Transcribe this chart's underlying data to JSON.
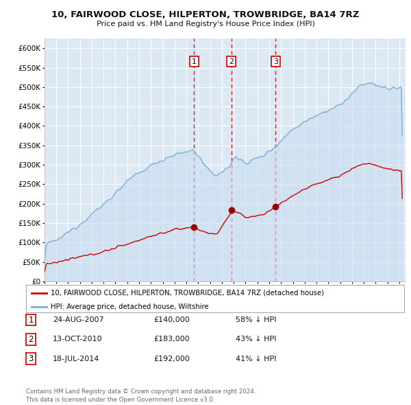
{
  "title": "10, FAIRWOOD CLOSE, HILPERTON, TROWBRIDGE, BA14 7RZ",
  "subtitle": "Price paid vs. HM Land Registry's House Price Index (HPI)",
  "property_label": "10, FAIRWOOD CLOSE, HILPERTON, TROWBRIDGE, BA14 7RZ (detached house)",
  "hpi_label": "HPI: Average price, detached house, Wiltshire",
  "transactions": [
    {
      "num": 1,
      "date": "24-AUG-2007",
      "price": 140000,
      "pct": "58% ↓ HPI",
      "date_x": 2007.65
    },
    {
      "num": 2,
      "date": "13-OCT-2010",
      "price": 183000,
      "pct": "43% ↓ HPI",
      "date_x": 2010.79
    },
    {
      "num": 3,
      "date": "18-JUL-2014",
      "price": 192000,
      "pct": "41% ↓ HPI",
      "date_x": 2014.54
    }
  ],
  "yticks": [
    0,
    50000,
    100000,
    150000,
    200000,
    250000,
    300000,
    350000,
    400000,
    450000,
    500000,
    550000,
    600000
  ],
  "ylim": [
    0,
    625000
  ],
  "xlim_start": 1995.0,
  "xlim_end": 2025.5,
  "xtick_years": [
    1995,
    1996,
    1997,
    1998,
    1999,
    2000,
    2001,
    2002,
    2003,
    2004,
    2005,
    2006,
    2007,
    2008,
    2009,
    2010,
    2011,
    2012,
    2013,
    2014,
    2015,
    2016,
    2017,
    2018,
    2019,
    2020,
    2021,
    2022,
    2023,
    2024,
    2025
  ],
  "bg_color": "#dce9f5",
  "grid_color": "#ffffff",
  "property_line_color": "#cc0000",
  "hpi_line_color": "#7aafd4",
  "marker_color": "#990000",
  "vline_color": "#cc0000",
  "footer": "Contains HM Land Registry data © Crown copyright and database right 2024.\nThis data is licensed under the Open Government Licence v3.0."
}
